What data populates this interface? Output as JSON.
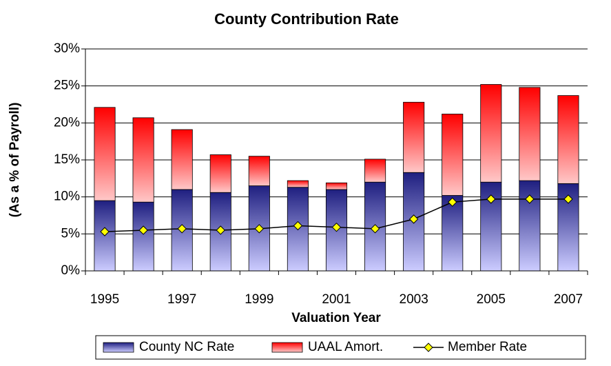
{
  "chart_data": {
    "type": "stacked-bar-line",
    "title": "County Contribution Rate",
    "x_label": "Valuation Year",
    "y_label": "(As a % of Payroll)",
    "categories": [
      "1995",
      null,
      "1997",
      null,
      "1999",
      null,
      "2001",
      null,
      "2003",
      null,
      "2005",
      null,
      "2007"
    ],
    "series": [
      {
        "name": "County NC Rate",
        "type": "bar",
        "color": "#1f1f80",
        "values": [
          9.5,
          9.3,
          11.0,
          10.6,
          11.5,
          11.3,
          11.0,
          12.0,
          13.3,
          10.2,
          12.0,
          12.2,
          11.8
        ]
      },
      {
        "name": "UAAL Amort.",
        "type": "bar",
        "color": "#ff0000",
        "values": [
          12.6,
          11.4,
          8.1,
          5.1,
          4.0,
          0.9,
          0.9,
          3.1,
          9.5,
          11.0,
          13.2,
          12.6,
          11.9
        ]
      },
      {
        "name": "Member Rate",
        "type": "line",
        "color": "#000000",
        "marker_color": "#ffff00",
        "values": [
          5.3,
          5.5,
          5.7,
          5.5,
          5.7,
          6.1,
          5.9,
          5.7,
          7.0,
          9.3,
          9.7,
          9.7,
          9.7
        ]
      }
    ],
    "ylim": [
      0,
      30
    ],
    "yticks": [
      {
        "value": 0,
        "label": "0%"
      },
      {
        "value": 5,
        "label": "5%"
      },
      {
        "value": 10,
        "label": "10%"
      },
      {
        "value": 15,
        "label": "15%"
      },
      {
        "value": 20,
        "label": "20%"
      },
      {
        "value": 25,
        "label": "25%"
      },
      {
        "value": 30,
        "label": "30%"
      }
    ],
    "grid": true,
    "legend": "bottom"
  }
}
